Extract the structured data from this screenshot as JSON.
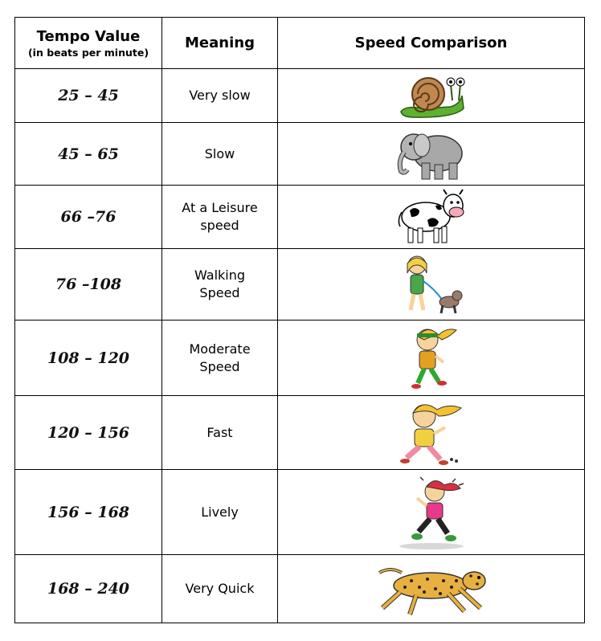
{
  "headers": {
    "tempo": "Tempo Value",
    "tempo_sub": "(in beats per minute)",
    "meaning": "Meaning",
    "comparison": "Speed Comparison"
  },
  "rows": [
    {
      "tempo": "25 – 45",
      "meaning": "Very slow",
      "icon": "snail-icon"
    },
    {
      "tempo": "45 – 65",
      "meaning": "Slow",
      "icon": "elephant-icon"
    },
    {
      "tempo": "66 –76",
      "meaning": "At a Leisure speed",
      "icon": "cow-icon"
    },
    {
      "tempo": "76 –108",
      "meaning": "Walking Speed",
      "icon": "girl-walking-dog-icon"
    },
    {
      "tempo": "108 – 120",
      "meaning": "Moderate Speed",
      "icon": "girl-jogging-icon"
    },
    {
      "tempo": "120 – 156",
      "meaning": "Fast",
      "icon": "girl-running-icon"
    },
    {
      "tempo": "156 – 168",
      "meaning": "Lively",
      "icon": "girl-sprinting-icon"
    },
    {
      "tempo": "168 – 240",
      "meaning": "Very Quick",
      "icon": "cheetah-icon"
    }
  ]
}
